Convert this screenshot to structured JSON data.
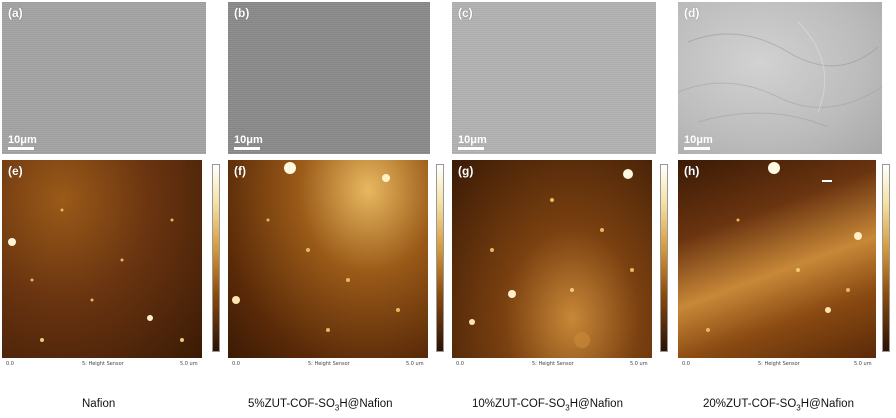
{
  "sem_panels": [
    {
      "letter": "(a)",
      "scale": "10μm"
    },
    {
      "letter": "(b)",
      "scale": "10μm"
    },
    {
      "letter": "(c)",
      "scale": "10μm"
    },
    {
      "letter": "(d)",
      "scale": "10μm"
    }
  ],
  "afm_panels": [
    {
      "letter": "(e)",
      "x_start": "0.0",
      "x_end": "5.0 um",
      "axis_title": "5: Height Sensor"
    },
    {
      "letter": "(f)",
      "x_start": "0.0",
      "x_end": "5.0 um",
      "axis_title": "5: Height Sensor"
    },
    {
      "letter": "(g)",
      "x_start": "0.0",
      "x_end": "5.0 um",
      "axis_title": "5: Height Sensor"
    },
    {
      "letter": "(h)",
      "x_start": "0.0",
      "x_end": "5.0 um",
      "axis_title": "5: Height Sensor"
    }
  ],
  "captions": [
    {
      "main": "Nafion",
      "pre": "",
      "sub": "",
      "post": ""
    },
    {
      "main": "",
      "pre": "5%ZUT-COF-SO",
      "sub": "3",
      "post": "H@Nafion"
    },
    {
      "main": "",
      "pre": "10%ZUT-COF-SO",
      "sub": "3",
      "post": "H@Nafion"
    },
    {
      "main": "",
      "pre": "20%ZUT-COF-SO",
      "sub": "3",
      "post": "H@Nafion"
    }
  ],
  "colors": {
    "sem_a": "#a3a3a3",
    "sem_b": "#8a8a8a",
    "sem_c": "#b2b2b2",
    "sem_d": "#c4c4c4",
    "afm_dark": "#3a1a05",
    "afm_mid": "#8a4a12",
    "afm_light": "#e8c070"
  }
}
